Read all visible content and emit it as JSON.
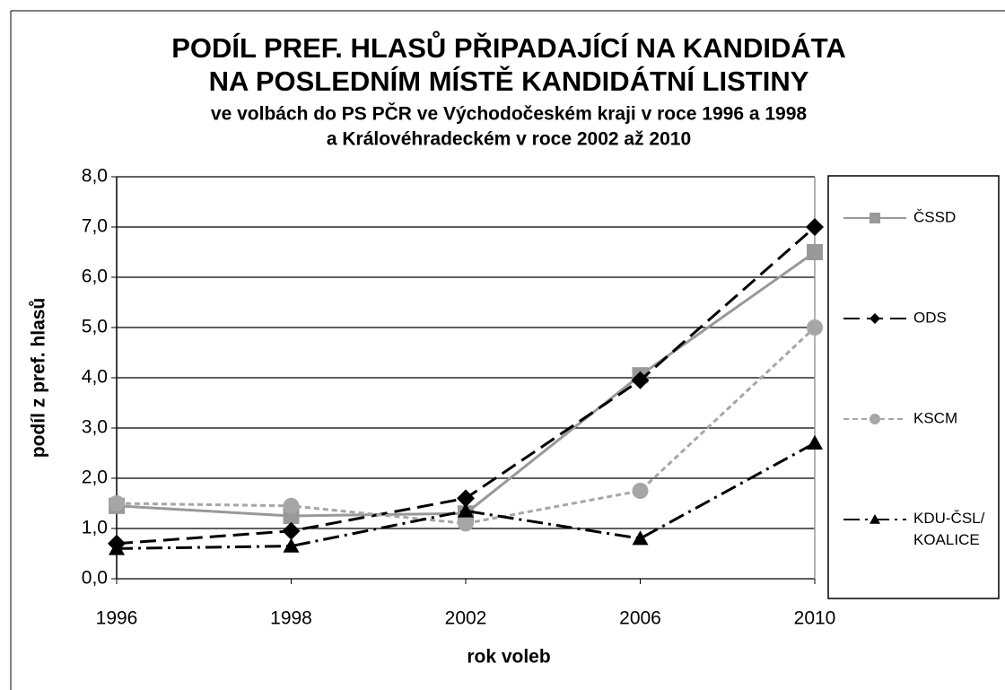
{
  "chart_data": {
    "type": "line",
    "title": [
      "PODÍL PREF. HLASŮ PŘIPADAJÍCÍ NA KANDIDÁTA",
      "NA POSLEDNÍM MÍSTĚ KANDIDÁTNÍ LISTINY"
    ],
    "subtitle": [
      "ve volbách do PS PČR ve Východočeském kraji v roce 1996 a 1998",
      "a Královéhradeckém v roce 2002 až 2010"
    ],
    "x_label": "rok voleb",
    "y_label": "podíl z pref. hlasů",
    "categories": [
      "1996",
      "1998",
      "2002",
      "2006",
      "2010"
    ],
    "series": [
      {
        "name": "ČSSD",
        "color": "#999999",
        "dash": "none",
        "marker": "square",
        "values": [
          1.45,
          1.25,
          1.3,
          4.05,
          6.5
        ]
      },
      {
        "name": "ODS",
        "color": "#000000",
        "dash": "18 8",
        "marker": "diamond",
        "values": [
          0.7,
          0.95,
          1.6,
          3.95,
          7.0
        ]
      },
      {
        "name": "KSCM",
        "color": "#a6a6a6",
        "dash": "6 4",
        "marker": "circle",
        "values": [
          1.5,
          1.45,
          1.1,
          1.75,
          5.0
        ]
      },
      {
        "name": "KDU-ČSL/ KOALICE",
        "color": "#000000",
        "dash": "18 6 3 6",
        "marker": "triangle",
        "values": [
          0.6,
          0.65,
          1.35,
          0.8,
          2.7
        ]
      }
    ],
    "ylim": [
      0,
      8
    ],
    "yticks": [
      {
        "value": 0,
        "label": "0,0"
      },
      {
        "value": 1,
        "label": "1,0"
      },
      {
        "value": 2,
        "label": "2,0"
      },
      {
        "value": 3,
        "label": "3,0"
      },
      {
        "value": 4,
        "label": "4,0"
      },
      {
        "value": 5,
        "label": "5,0"
      },
      {
        "value": 6,
        "label": "6,0"
      },
      {
        "value": 7,
        "label": "7,0"
      },
      {
        "value": 8,
        "label": "8,0"
      }
    ],
    "grid": true,
    "legend": "right"
  }
}
